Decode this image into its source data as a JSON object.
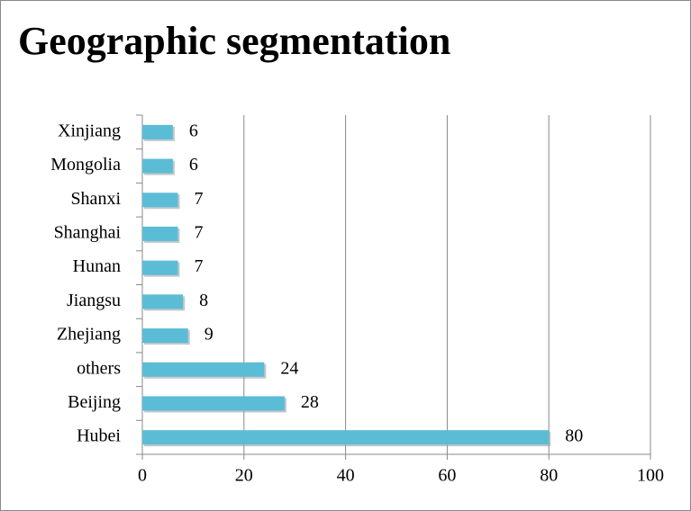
{
  "chart_data": {
    "type": "bar",
    "orientation": "horizontal",
    "title": "Geographic segmentation",
    "categories": [
      "Xinjiang",
      "Mongolia",
      "Shanxi",
      "Shanghai",
      "Hunan",
      "Jiangsu",
      "Zhejiang",
      "others",
      "Beijing",
      "Hubei"
    ],
    "values": [
      6,
      6,
      7,
      7,
      7,
      8,
      9,
      24,
      28,
      80
    ],
    "color": "#5bbcd6",
    "xlim": [
      0,
      100
    ],
    "xticks": [
      0,
      20,
      40,
      60,
      80,
      100
    ],
    "grid": true
  }
}
